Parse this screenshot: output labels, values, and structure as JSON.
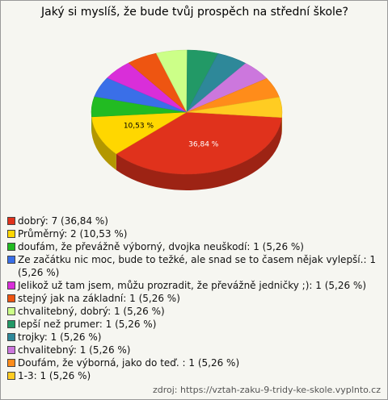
{
  "chart_data": {
    "type": "pie3d",
    "title": "Jaký si myslíš, že bude tvůj prospěch na střední škole?",
    "categories": [
      "dobrý: 7 (36,84 %)",
      "Průměrný: 2 (10,53 %)",
      "doufám, že převážně výborný, dvojka neuškodí: 1 (5,26 %)",
      "Ze začátku nic moc, bude to težké, ale snad se to časem nějak vylepší.: 1 (5,26 %)",
      "Jelikož už tam jsem, můžu prozradit, že převážně jedničky ;): 1 (5,26 %)",
      "stejný jak na základní: 1 (5,26 %)",
      "chvalitebný, dobrý: 1 (5,26 %)",
      "lepší než prumer: 1 (5,26 %)",
      "trojky: 1 (5,26 %)",
      "chvalitebný: 1 (5,26 %)",
      "Doufám, že výborná, jako do teď. : 1 (5,26 %)",
      "1-3: 1 (5,26 %)"
    ],
    "values": [
      36.84,
      10.53,
      5.26,
      5.26,
      5.26,
      5.26,
      5.26,
      5.26,
      5.26,
      5.26,
      5.26,
      5.26
    ],
    "value_labels": [
      "36,84 %",
      "10,53 %",
      null,
      null,
      null,
      null,
      null,
      null,
      null,
      null,
      null,
      null
    ],
    "colors": [
      "#e0321c",
      "#ffd700",
      "#22bb22",
      "#3a6fe8",
      "#d92ed9",
      "#ee5511",
      "#ccff88",
      "#229966",
      "#2e8899",
      "#cc77dd",
      "#ff8c1a",
      "#ffcc22"
    ],
    "source": "zdroj: https://vztah-zaku-9-tridy-ke-skole.vyplnto.cz"
  }
}
